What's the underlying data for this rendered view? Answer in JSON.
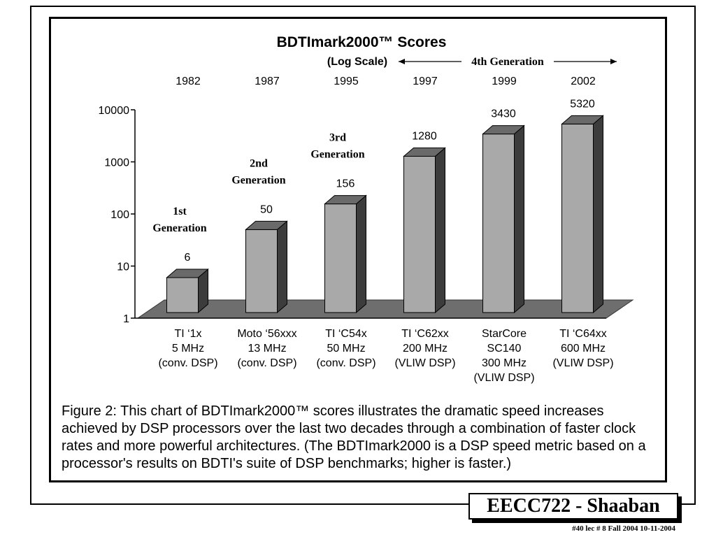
{
  "chart_data": {
    "type": "bar",
    "title": "BDTImark2000™ Scores",
    "subtitle": "(Log Scale)",
    "scale": "log",
    "ylim": [
      1,
      10000
    ],
    "yticks": [
      1,
      10,
      100,
      1000,
      10000
    ],
    "ytick_labels": [
      "1",
      "10",
      "100",
      "1000",
      "10000"
    ],
    "years": [
      "1982",
      "1987",
      "1995",
      "1997",
      "1999",
      "2002"
    ],
    "categories": [
      [
        "TI ‘1x",
        "5 MHz",
        "(conv. DSP)"
      ],
      [
        "Moto ‘56xxx",
        "13 MHz",
        "(conv. DSP)"
      ],
      [
        "TI ‘C54x",
        "50 MHz",
        "(conv. DSP)"
      ],
      [
        "TI ‘C62xx",
        "200 MHz",
        "(VLIW DSP)"
      ],
      [
        "StarCore",
        "SC140",
        "300 MHz",
        "(VLIW DSP)"
      ],
      [
        "TI ‘C64xx",
        "600 MHz",
        "(VLIW DSP)"
      ]
    ],
    "values": [
      6,
      50,
      156,
      1280,
      3430,
      5320
    ],
    "value_labels": [
      "6",
      "50",
      "156",
      "1280",
      "3430",
      "5320"
    ],
    "annotations": [
      {
        "lines": [
          "1st",
          "Generation"
        ],
        "bar": 0
      },
      {
        "lines": [
          "2nd",
          "Generation"
        ],
        "bar": 1
      },
      {
        "lines": [
          "3rd",
          "Generation"
        ],
        "bar": 2
      },
      {
        "lines": [
          "4th  Generation"
        ],
        "bars": [
          3,
          5
        ]
      }
    ],
    "legend": "none",
    "grid": false,
    "colors": {
      "bar_front": "#a9a9a9",
      "bar_top": "#6a6a6a",
      "bar_side": "#3c3c3c",
      "floor": "#6e6e6e"
    }
  },
  "caption": "Figure 2: This chart of BDTImark2000™ scores illustrates the dramatic speed increases achieved by DSP processors over the last two decades through a combination of faster clock rates and more powerful architectures. (The BDTImark2000 is a DSP speed metric based on a processor's results on BDTI's suite of DSP benchmarks; higher is faster.)",
  "footer": {
    "title": "EECC722 - Shaaban",
    "meta": "#40   lec # 8    Fall 2004   10-11-2004"
  }
}
